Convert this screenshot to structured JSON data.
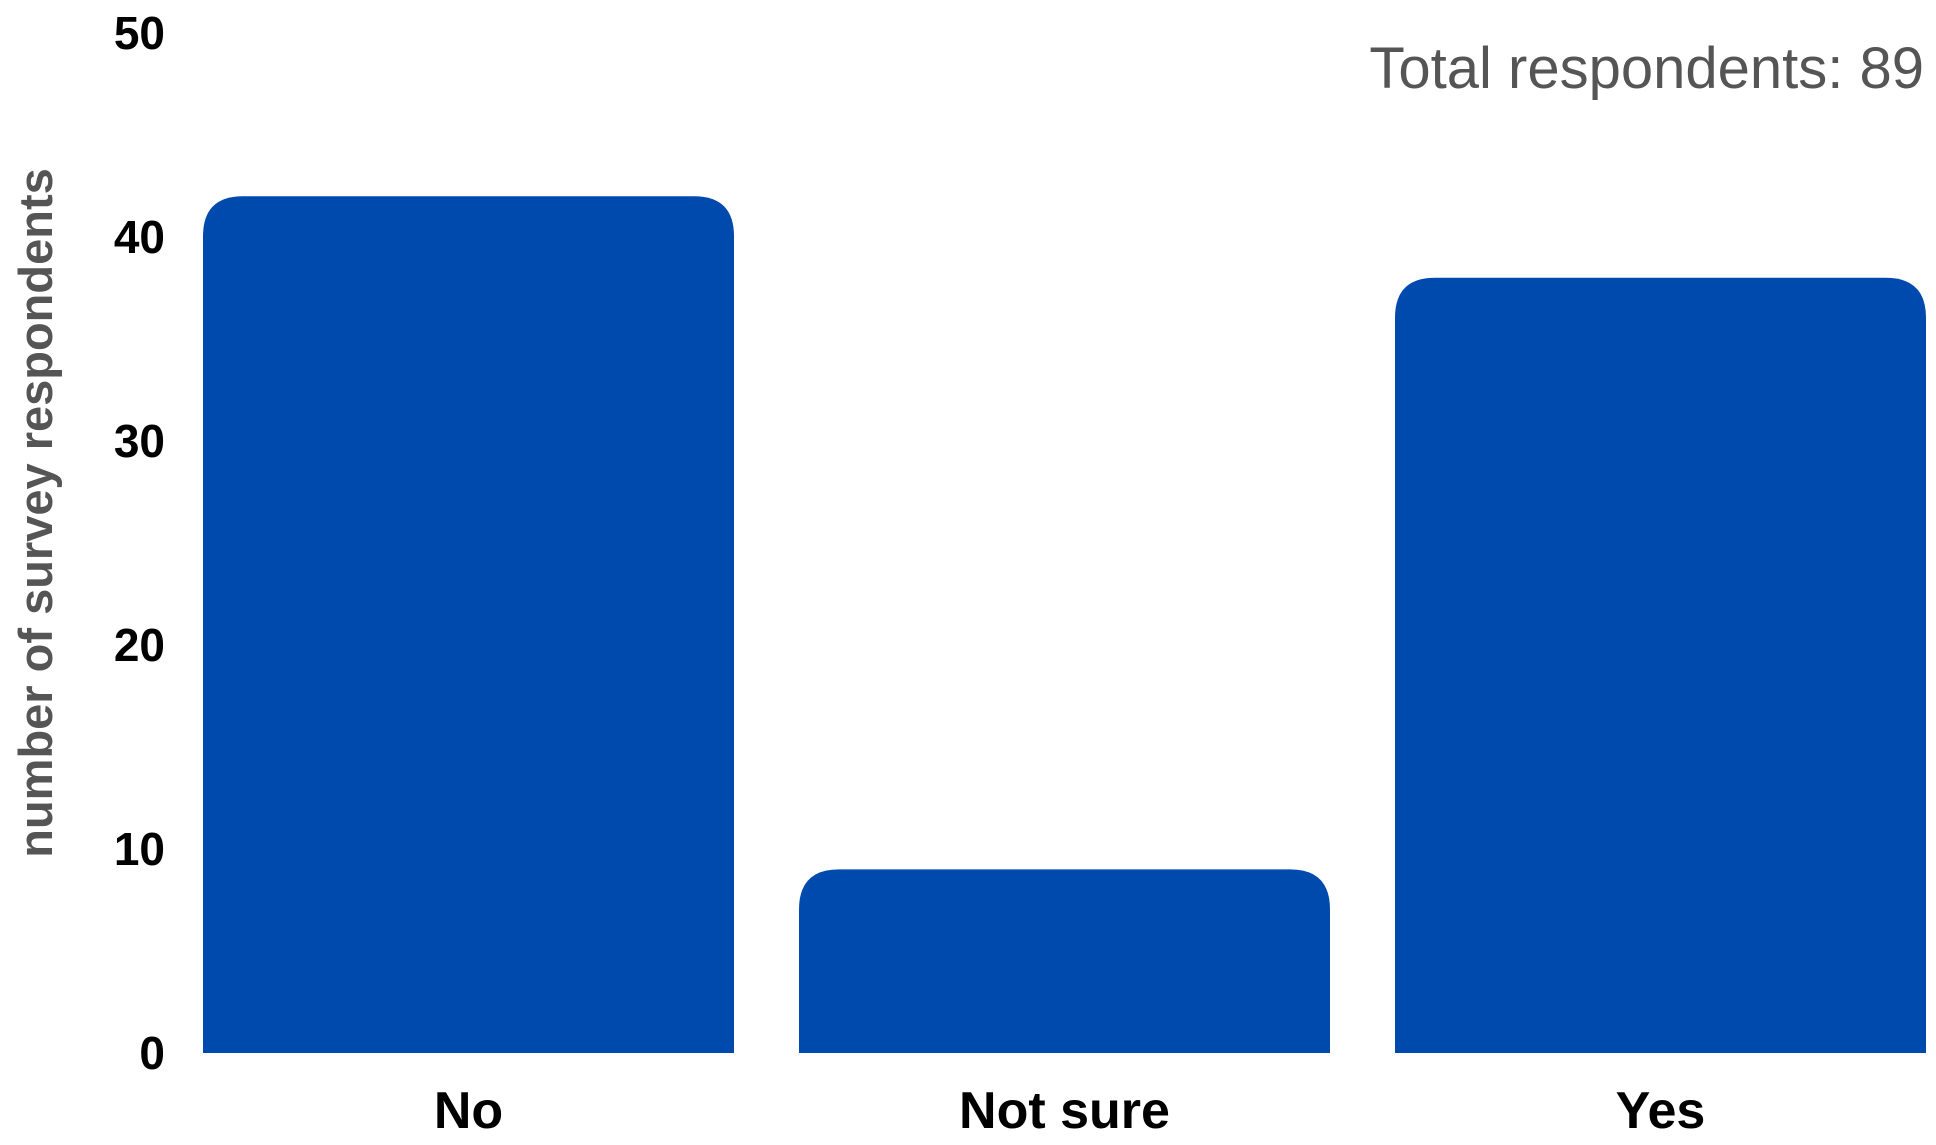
{
  "chart_data": {
    "type": "bar",
    "categories": [
      "No",
      "Not sure",
      "Yes"
    ],
    "values": [
      42,
      9,
      38
    ],
    "ylabel": "number of survey respondents",
    "xlabel": "",
    "ylim": [
      0,
      50
    ],
    "yticks": [
      0,
      10,
      20,
      30,
      40,
      50
    ],
    "annotation": "Total respondents: 89",
    "bar_color": "#004AAD",
    "grid": false,
    "legend": "none"
  }
}
